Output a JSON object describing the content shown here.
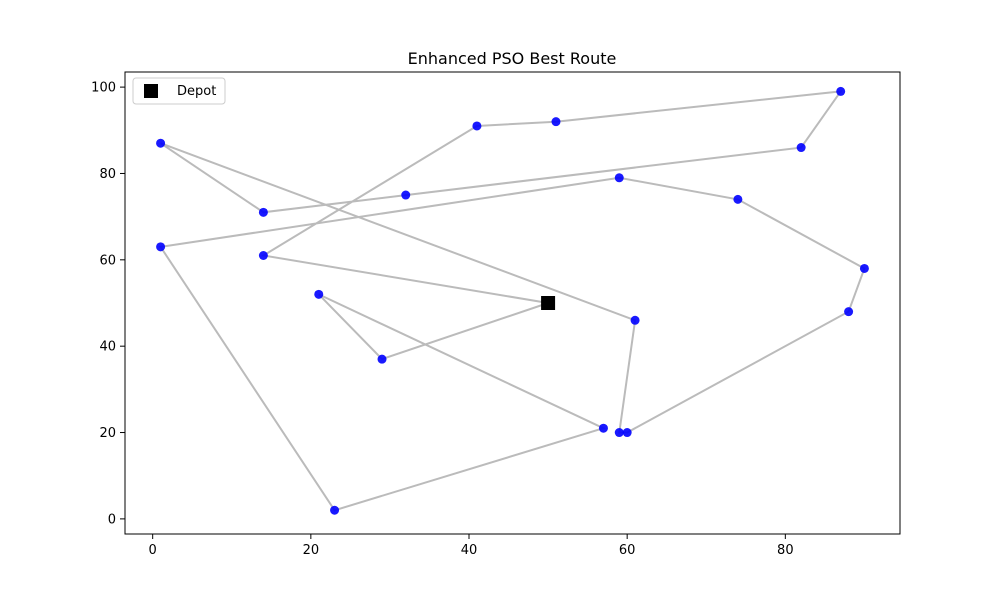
{
  "chart_data": {
    "type": "scatter",
    "title": "Enhanced PSO Best Route",
    "xlabel": "",
    "ylabel": "",
    "xlim": [
      -3.5,
      94.5
    ],
    "ylim": [
      -3.5,
      103.5
    ],
    "xticks": [
      0,
      20,
      40,
      60,
      80
    ],
    "yticks": [
      0,
      20,
      40,
      60,
      80,
      100
    ],
    "grid": false,
    "legend": {
      "position": "top-left",
      "entries": [
        "Depot"
      ]
    },
    "depot": {
      "x": 50,
      "y": 50,
      "label": "Depot"
    },
    "customers": [
      {
        "x": 21,
        "y": 52
      },
      {
        "x": 29,
        "y": 37
      },
      {
        "x": 57,
        "y": 21
      },
      {
        "x": 59,
        "y": 20
      },
      {
        "x": 60,
        "y": 20
      },
      {
        "x": 88,
        "y": 48
      },
      {
        "x": 90,
        "y": 58
      },
      {
        "x": 74,
        "y": 74
      },
      {
        "x": 59,
        "y": 79
      },
      {
        "x": 1,
        "y": 63
      },
      {
        "x": 23,
        "y": 2
      },
      {
        "x": 61,
        "y": 46
      },
      {
        "x": 1,
        "y": 87
      },
      {
        "x": 14,
        "y": 71
      },
      {
        "x": 32,
        "y": 75
      },
      {
        "x": 82,
        "y": 86
      },
      {
        "x": 87,
        "y": 99
      },
      {
        "x": 51,
        "y": 92
      },
      {
        "x": 41,
        "y": 91
      },
      {
        "x": 14,
        "y": 61
      }
    ],
    "route": [
      [
        50,
        50
      ],
      [
        29,
        37
      ],
      [
        21,
        52
      ],
      [
        57,
        21
      ],
      [
        23,
        2
      ],
      [
        1,
        63
      ],
      [
        59,
        79
      ],
      [
        74,
        74
      ],
      [
        90,
        58
      ],
      [
        88,
        48
      ],
      [
        60,
        20
      ],
      [
        59,
        20
      ],
      [
        61,
        46
      ],
      [
        1,
        87
      ],
      [
        14,
        71
      ],
      [
        32,
        75
      ],
      [
        82,
        86
      ],
      [
        87,
        99
      ],
      [
        51,
        92
      ],
      [
        41,
        91
      ],
      [
        14,
        61
      ],
      [
        50,
        50
      ]
    ],
    "colors": {
      "customer": "#0000ff",
      "depot": "#000000",
      "route": "#bbbbbb"
    }
  }
}
